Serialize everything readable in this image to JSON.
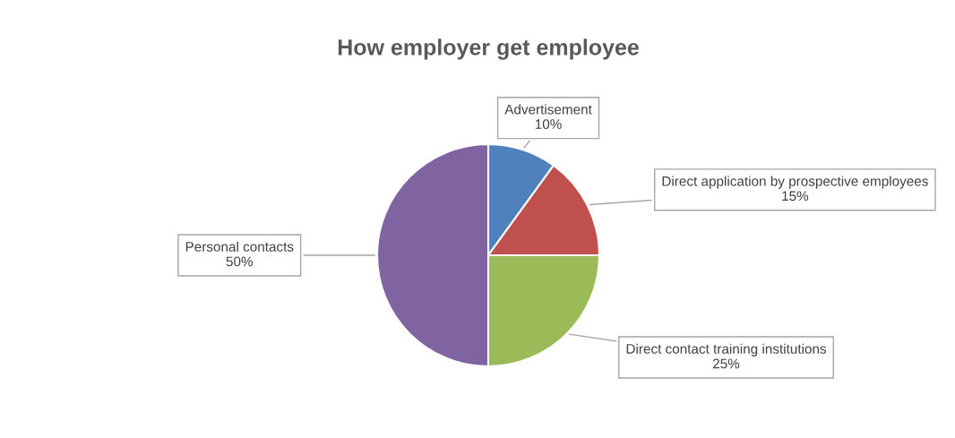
{
  "chart_data": {
    "type": "pie",
    "title": "How employer get employee",
    "categories": [
      "Advertisement",
      "Direct application by prospective employees",
      "Direct contact training institutions",
      "Personal contacts"
    ],
    "values": [
      10,
      15,
      25,
      50
    ],
    "value_labels": [
      "10%",
      "15%",
      "25%",
      "50%"
    ],
    "colors": [
      "#4f81bd",
      "#c0504d",
      "#9bbb59",
      "#8064a2"
    ],
    "legend": false
  }
}
